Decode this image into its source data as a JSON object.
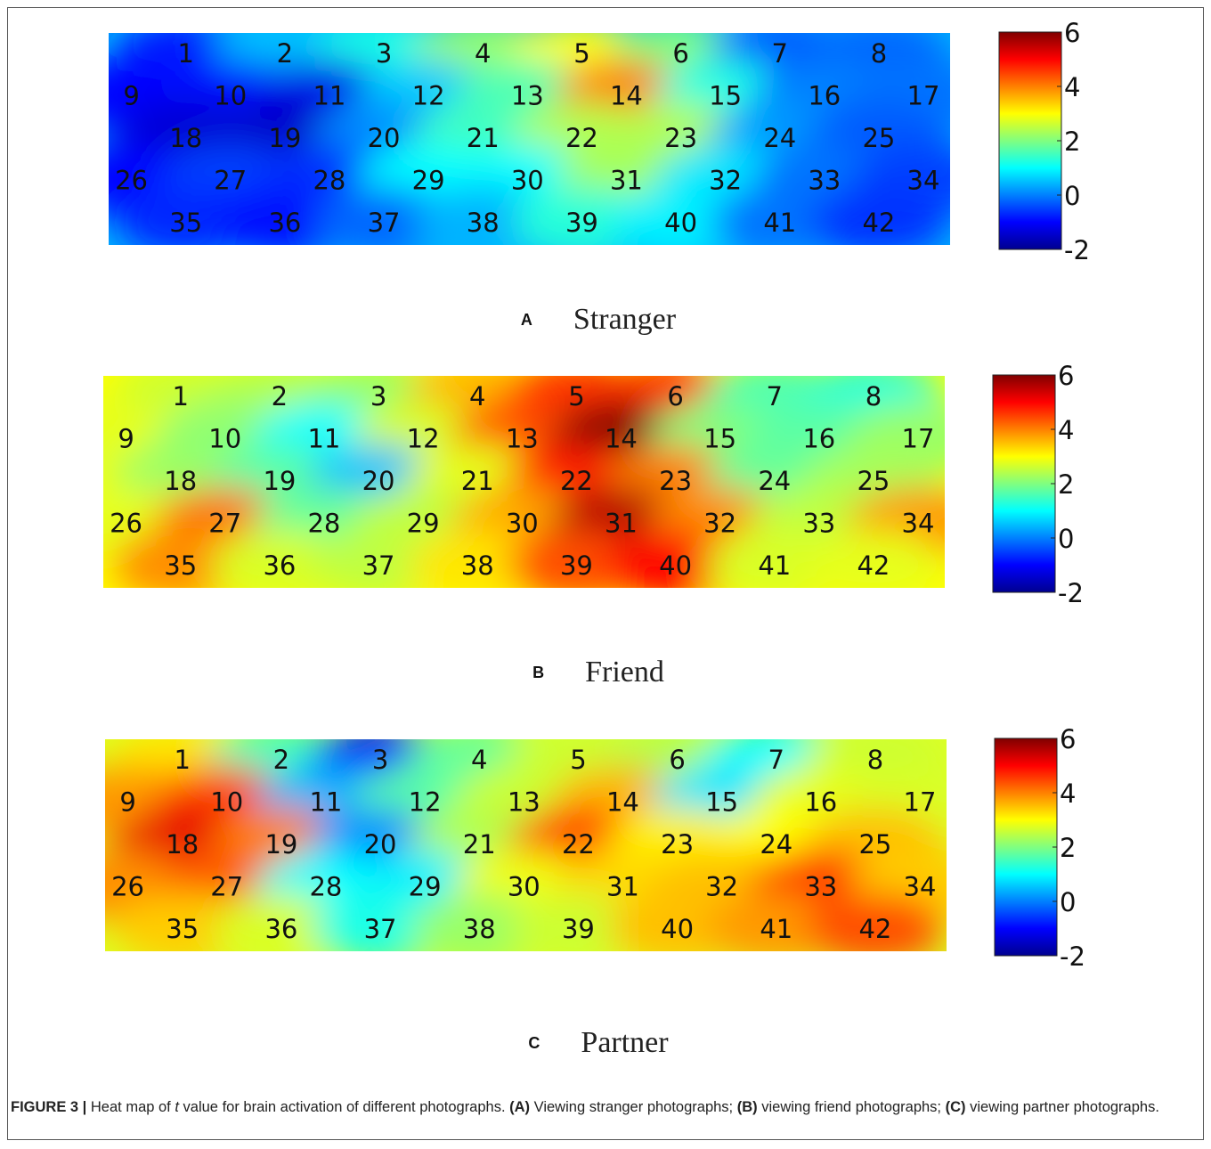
{
  "figure": {
    "label": "FIGURE 3 |",
    "caption_pre": "Heat map of ",
    "caption_var": "t",
    "caption_post": " value for brain activation of different photographs. ",
    "part_a_tag": "(A)",
    "part_a_text": " Viewing stranger photographs; ",
    "part_b_tag": "(B)",
    "part_b_text": " viewing friend photographs; ",
    "part_c_tag": "(C)",
    "part_c_text": " viewing partner photographs."
  },
  "colorscale": {
    "stops": [
      "#00008f",
      "#0000ff",
      "#0080ff",
      "#00ffff",
      "#80ff80",
      "#ffff00",
      "#ff8000",
      "#ff0000",
      "#800000"
    ],
    "tick_labels": [
      "6",
      "4",
      "2",
      "0",
      "-2"
    ]
  },
  "chart_data": [
    {
      "type": "heatmap",
      "panel_letter": "A",
      "title": "Stranger",
      "zlim": [
        -2,
        6
      ],
      "channels": [
        {
          "id": "1",
          "t": -0.8
        },
        {
          "id": "2",
          "t": 0.5
        },
        {
          "id": "3",
          "t": 1.2
        },
        {
          "id": "4",
          "t": 2.2
        },
        {
          "id": "5",
          "t": 3.0
        },
        {
          "id": "6",
          "t": 2.0
        },
        {
          "id": "7",
          "t": -0.3
        },
        {
          "id": "8",
          "t": -0.2
        },
        {
          "id": "9",
          "t": -1.0
        },
        {
          "id": "10",
          "t": -0.9
        },
        {
          "id": "11",
          "t": -1.2
        },
        {
          "id": "12",
          "t": 0.6
        },
        {
          "id": "13",
          "t": 1.6
        },
        {
          "id": "14",
          "t": 4.0
        },
        {
          "id": "15",
          "t": 1.2
        },
        {
          "id": "16",
          "t": 0.0
        },
        {
          "id": "17",
          "t": -0.1
        },
        {
          "id": "18",
          "t": -1.4
        },
        {
          "id": "19",
          "t": -1.5
        },
        {
          "id": "20",
          "t": 0.1
        },
        {
          "id": "21",
          "t": 1.5
        },
        {
          "id": "22",
          "t": 2.4
        },
        {
          "id": "23",
          "t": 2.4
        },
        {
          "id": "24",
          "t": 0.2
        },
        {
          "id": "25",
          "t": -0.3
        },
        {
          "id": "26",
          "t": -1.0
        },
        {
          "id": "27",
          "t": -0.5
        },
        {
          "id": "28",
          "t": -0.6
        },
        {
          "id": "29",
          "t": 1.0
        },
        {
          "id": "30",
          "t": 1.0
        },
        {
          "id": "31",
          "t": 2.3
        },
        {
          "id": "32",
          "t": 0.8
        },
        {
          "id": "33",
          "t": -0.1
        },
        {
          "id": "34",
          "t": -0.5
        },
        {
          "id": "35",
          "t": -0.7
        },
        {
          "id": "36",
          "t": -0.9
        },
        {
          "id": "37",
          "t": -0.2
        },
        {
          "id": "38",
          "t": 0.4
        },
        {
          "id": "39",
          "t": 1.3
        },
        {
          "id": "40",
          "t": 0.9
        },
        {
          "id": "41",
          "t": -0.1
        },
        {
          "id": "42",
          "t": -0.6
        }
      ]
    },
    {
      "type": "heatmap",
      "panel_letter": "B",
      "title": "Friend",
      "zlim": [
        -2,
        6
      ],
      "channels": [
        {
          "id": "1",
          "t": 2.6
        },
        {
          "id": "2",
          "t": 2.4
        },
        {
          "id": "3",
          "t": 2.2
        },
        {
          "id": "4",
          "t": 3.6
        },
        {
          "id": "5",
          "t": 4.6
        },
        {
          "id": "6",
          "t": 4.6
        },
        {
          "id": "7",
          "t": 1.6
        },
        {
          "id": "8",
          "t": 1.3
        },
        {
          "id": "9",
          "t": 2.8
        },
        {
          "id": "10",
          "t": 2.1
        },
        {
          "id": "11",
          "t": 1.0
        },
        {
          "id": "12",
          "t": 2.7
        },
        {
          "id": "13",
          "t": 4.4
        },
        {
          "id": "14",
          "t": 6.0
        },
        {
          "id": "15",
          "t": 2.0
        },
        {
          "id": "16",
          "t": 1.7
        },
        {
          "id": "17",
          "t": 2.2
        },
        {
          "id": "18",
          "t": 2.2
        },
        {
          "id": "19",
          "t": 1.7
        },
        {
          "id": "20",
          "t": 0.5
        },
        {
          "id": "21",
          "t": 2.8
        },
        {
          "id": "22",
          "t": 4.8
        },
        {
          "id": "23",
          "t": 4.0
        },
        {
          "id": "24",
          "t": 1.8
        },
        {
          "id": "25",
          "t": 2.3
        },
        {
          "id": "26",
          "t": 2.8
        },
        {
          "id": "27",
          "t": 4.1
        },
        {
          "id": "28",
          "t": 1.8
        },
        {
          "id": "29",
          "t": 2.5
        },
        {
          "id": "30",
          "t": 3.7
        },
        {
          "id": "31",
          "t": 5.6
        },
        {
          "id": "32",
          "t": 3.9
        },
        {
          "id": "33",
          "t": 2.5
        },
        {
          "id": "34",
          "t": 3.8
        },
        {
          "id": "35",
          "t": 3.9
        },
        {
          "id": "36",
          "t": 2.7
        },
        {
          "id": "37",
          "t": 2.5
        },
        {
          "id": "38",
          "t": 3.2
        },
        {
          "id": "39",
          "t": 4.4
        },
        {
          "id": "40",
          "t": 5.0
        },
        {
          "id": "41",
          "t": 2.7
        },
        {
          "id": "42",
          "t": 2.8
        }
      ]
    },
    {
      "type": "heatmap",
      "panel_letter": "C",
      "title": "Partner",
      "zlim": [
        -2,
        6
      ],
      "channels": [
        {
          "id": "1",
          "t": 3.2
        },
        {
          "id": "2",
          "t": 1.5
        },
        {
          "id": "3",
          "t": -0.8
        },
        {
          "id": "4",
          "t": 1.8
        },
        {
          "id": "5",
          "t": 2.6
        },
        {
          "id": "6",
          "t": 2.4
        },
        {
          "id": "7",
          "t": 1.0
        },
        {
          "id": "8",
          "t": 2.6
        },
        {
          "id": "9",
          "t": 3.8
        },
        {
          "id": "10",
          "t": 4.5
        },
        {
          "id": "11",
          "t": 0.4
        },
        {
          "id": "12",
          "t": 1.7
        },
        {
          "id": "13",
          "t": 2.6
        },
        {
          "id": "14",
          "t": 3.6
        },
        {
          "id": "15",
          "t": 0.8
        },
        {
          "id": "16",
          "t": 2.8
        },
        {
          "id": "17",
          "t": 2.7
        },
        {
          "id": "18",
          "t": 5.2
        },
        {
          "id": "19",
          "t": 4.0
        },
        {
          "id": "20",
          "t": 0.1
        },
        {
          "id": "21",
          "t": 2.4
        },
        {
          "id": "22",
          "t": 4.5
        },
        {
          "id": "23",
          "t": 3.1
        },
        {
          "id": "24",
          "t": 3.0
        },
        {
          "id": "25",
          "t": 3.5
        },
        {
          "id": "26",
          "t": 3.9
        },
        {
          "id": "27",
          "t": 4.3
        },
        {
          "id": "28",
          "t": 1.0
        },
        {
          "id": "29",
          "t": 0.9
        },
        {
          "id": "30",
          "t": 2.9
        },
        {
          "id": "31",
          "t": 3.3
        },
        {
          "id": "32",
          "t": 3.5
        },
        {
          "id": "33",
          "t": 4.6
        },
        {
          "id": "34",
          "t": 3.4
        },
        {
          "id": "35",
          "t": 3.4
        },
        {
          "id": "36",
          "t": 2.7
        },
        {
          "id": "37",
          "t": 1.2
        },
        {
          "id": "38",
          "t": 2.2
        },
        {
          "id": "39",
          "t": 2.6
        },
        {
          "id": "40",
          "t": 3.5
        },
        {
          "id": "41",
          "t": 3.8
        },
        {
          "id": "42",
          "t": 4.4
        }
      ]
    }
  ]
}
